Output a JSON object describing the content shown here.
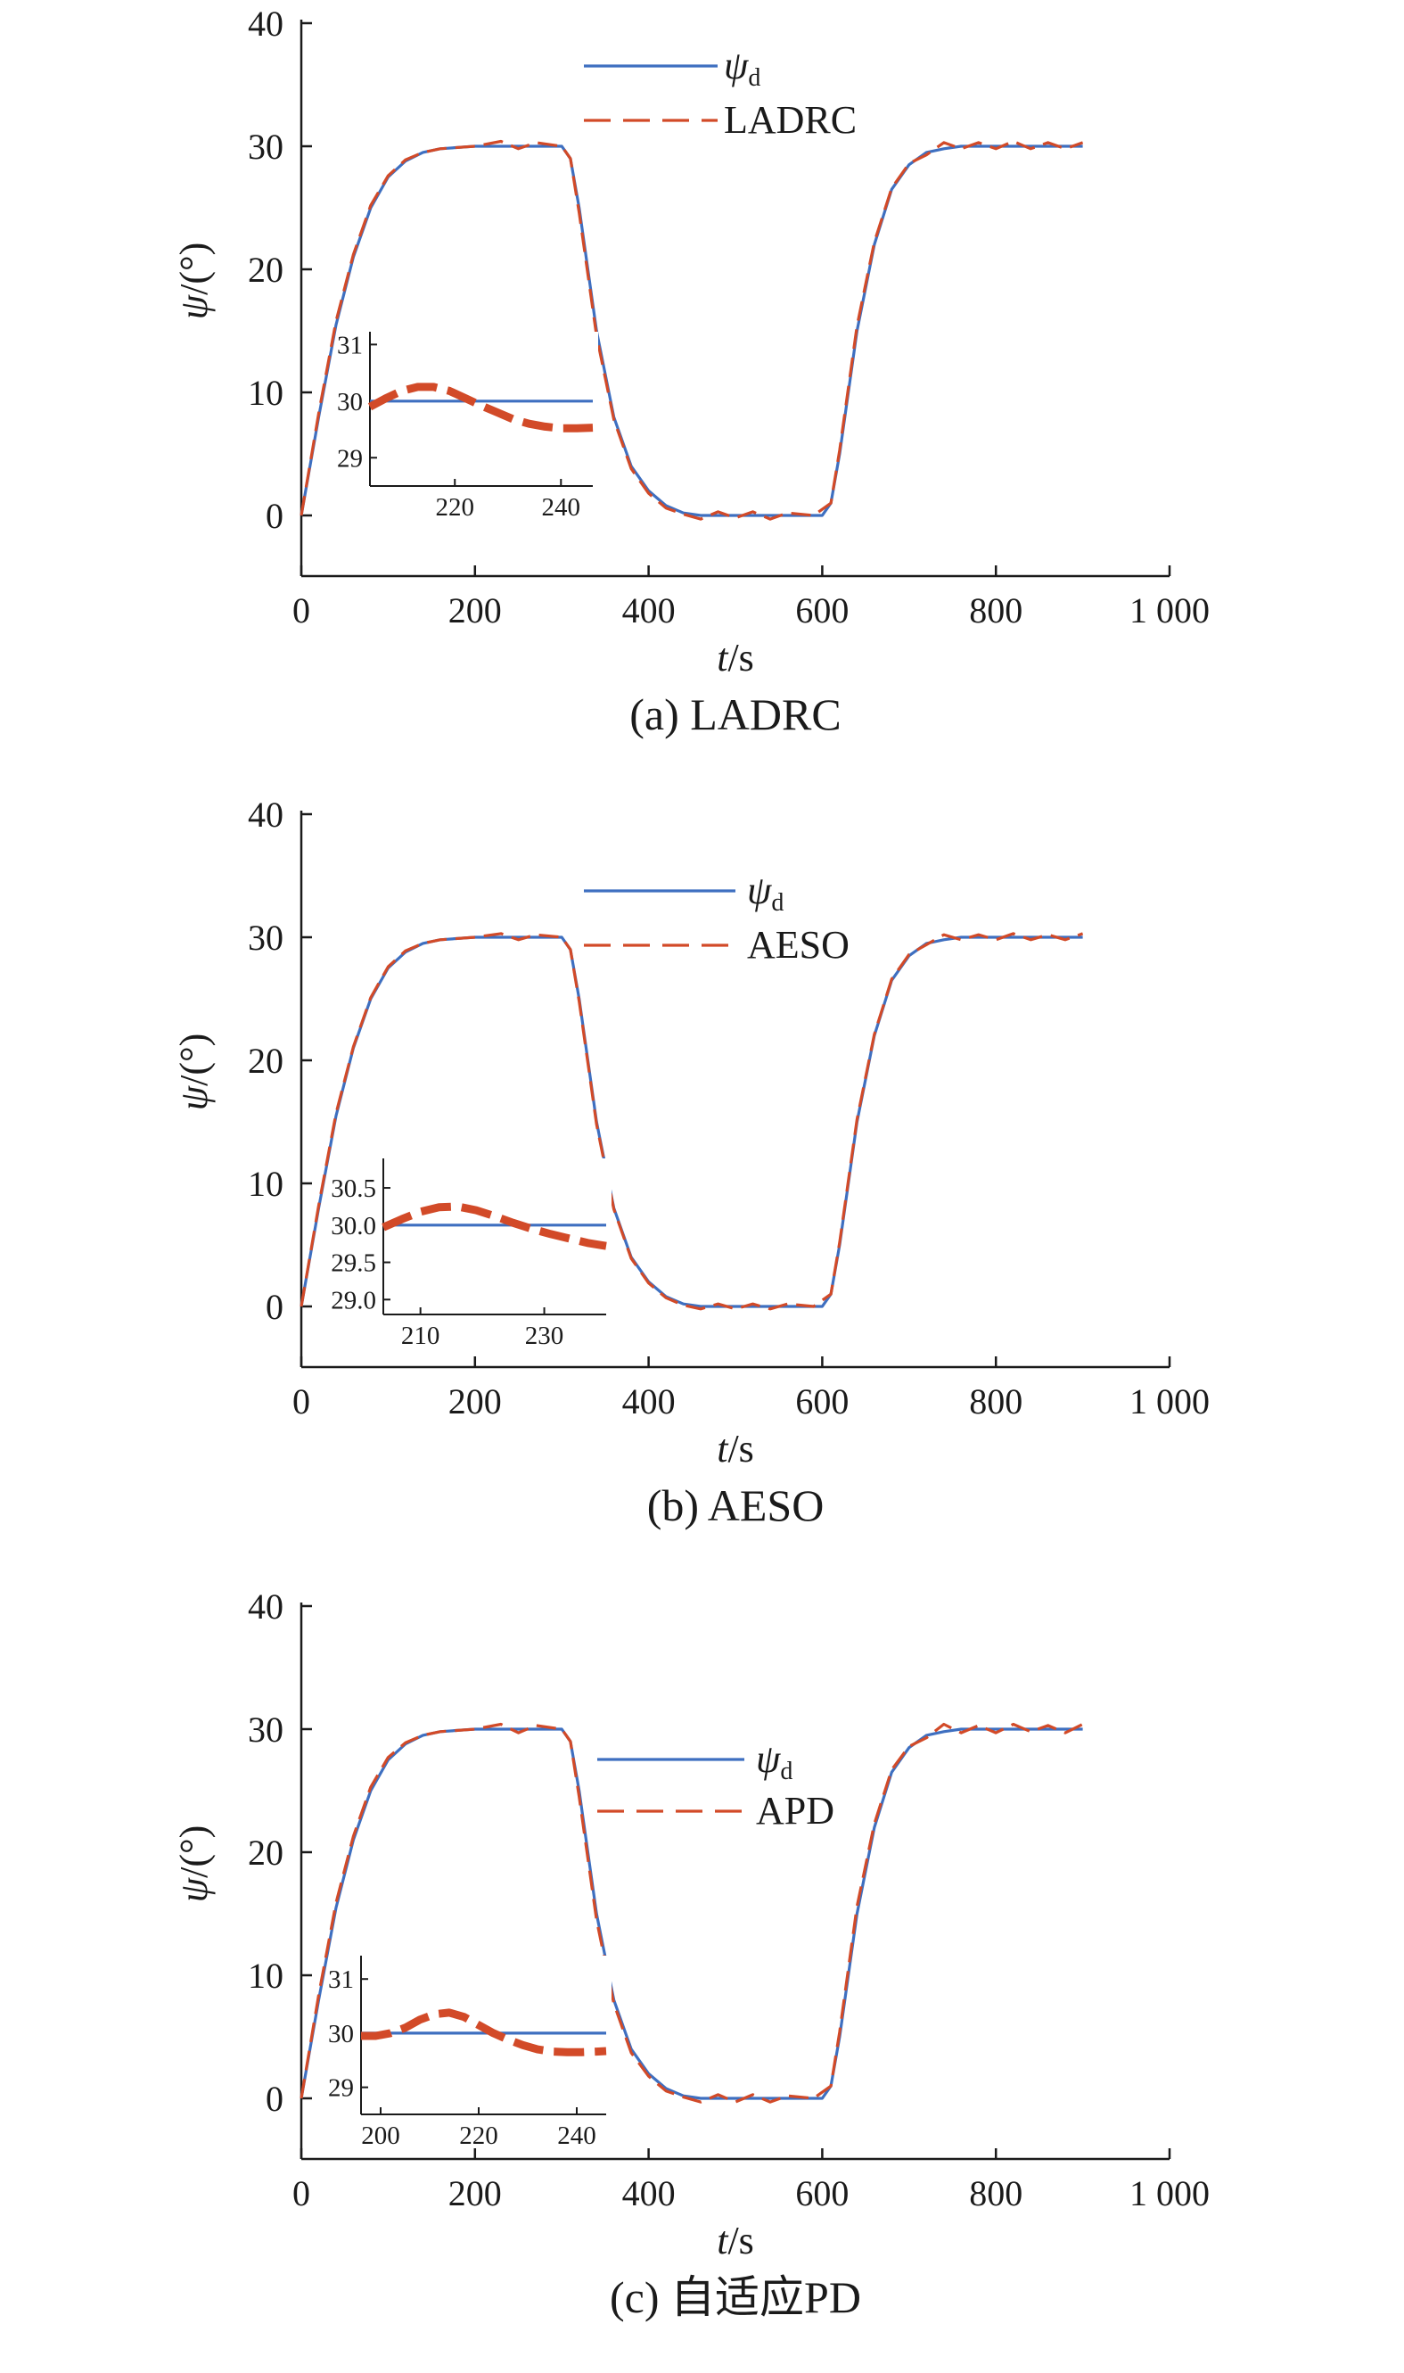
{
  "colors": {
    "desired": "#3e6fc0",
    "controller": "#d24a28",
    "axis": "#1a1a1a"
  },
  "chart_data": [
    {
      "type": "line",
      "caption": "(a) LADRC",
      "xlabel": {
        "var": "t",
        "unit": "/s"
      },
      "ylabel": {
        "var": "ψ",
        "unit": "/(°)"
      },
      "xlim": [
        0,
        1000
      ],
      "ylim": [
        -5,
        40
      ],
      "xticks": [
        0,
        200,
        400,
        600,
        800,
        1000
      ],
      "xtick_labels": [
        "0",
        "200",
        "400",
        "600",
        "800",
        "1 000"
      ],
      "yticks": [
        0,
        10,
        20,
        30,
        40
      ],
      "ytick_labels": [
        "0",
        "10",
        "20",
        "30",
        "40"
      ],
      "legend_position": "top-center",
      "series": [
        {
          "name": "ψd",
          "label_main": "ψ",
          "label_sub": "d",
          "style": "solid",
          "x": [
            0,
            20,
            40,
            60,
            80,
            100,
            120,
            140,
            160,
            200,
            250,
            300,
            310,
            320,
            340,
            360,
            380,
            400,
            420,
            440,
            460,
            500,
            550,
            600,
            610,
            620,
            640,
            660,
            680,
            700,
            720,
            740,
            760,
            800,
            850,
            900
          ],
          "y": [
            0,
            8,
            15.5,
            21,
            25,
            27.5,
            28.8,
            29.5,
            29.8,
            30,
            30,
            30,
            29,
            25,
            15,
            8,
            4,
            2,
            0.8,
            0.2,
            0,
            0,
            0,
            0,
            1,
            5,
            15,
            22,
            26.5,
            28.5,
            29.5,
            29.8,
            30,
            30,
            30,
            30
          ]
        },
        {
          "name": "LADRC",
          "style": "dashed",
          "x": [
            0,
            20,
            40,
            60,
            80,
            100,
            120,
            140,
            160,
            200,
            230,
            250,
            270,
            300,
            310,
            320,
            340,
            360,
            380,
            400,
            420,
            440,
            460,
            480,
            500,
            520,
            540,
            560,
            590,
            610,
            620,
            640,
            660,
            680,
            700,
            720,
            740,
            760,
            780,
            800,
            820,
            840,
            860,
            880,
            900
          ],
          "y": [
            0,
            8.3,
            15.8,
            21.2,
            25.2,
            27.6,
            28.9,
            29.5,
            29.8,
            30,
            30.4,
            29.8,
            30.3,
            30,
            29,
            24.6,
            14.6,
            7.8,
            3.8,
            1.8,
            0.6,
            0.1,
            -0.3,
            0.3,
            -0.2,
            0.3,
            -0.3,
            0.2,
            0,
            1,
            5.3,
            15.4,
            22.2,
            26.6,
            28.6,
            29.3,
            30.3,
            29.8,
            30.3,
            29.8,
            30.4,
            29.8,
            30.3,
            29.8,
            30.3
          ]
        }
      ],
      "inset": {
        "xlim": [
          204,
          246
        ],
        "ylim": [
          28.5,
          31.1
        ],
        "xticks": [
          220,
          240
        ],
        "xtick_labels": [
          "220",
          "240"
        ],
        "yticks": [
          29,
          30,
          31
        ],
        "ytick_labels": [
          "29",
          "30",
          "31"
        ],
        "series": [
          {
            "name": "ψd",
            "x": [
              204,
              246
            ],
            "y": [
              30,
              30
            ]
          },
          {
            "name": "LADRC",
            "x": [
              204,
              207,
              210,
              213,
              216,
              219,
              222,
              225,
              228,
              231,
              234,
              237,
              240,
              243,
              246
            ],
            "y": [
              29.9,
              30.05,
              30.18,
              30.25,
              30.25,
              30.18,
              30.05,
              29.92,
              29.8,
              29.68,
              29.6,
              29.55,
              29.52,
              29.52,
              29.53
            ]
          }
        ]
      }
    },
    {
      "type": "line",
      "caption": "(b) AESO",
      "xlabel": {
        "var": "t",
        "unit": "/s"
      },
      "ylabel": {
        "var": "ψ",
        "unit": "/(°)"
      },
      "xlim": [
        0,
        1000
      ],
      "ylim": [
        -5,
        40
      ],
      "xticks": [
        0,
        200,
        400,
        600,
        800,
        1000
      ],
      "xtick_labels": [
        "0",
        "200",
        "400",
        "600",
        "800",
        "1 000"
      ],
      "yticks": [
        0,
        10,
        20,
        30,
        40
      ],
      "ytick_labels": [
        "0",
        "10",
        "20",
        "30",
        "40"
      ],
      "legend_position": "top-center",
      "series": [
        {
          "name": "ψd",
          "label_main": "ψ",
          "label_sub": "d",
          "style": "solid",
          "x": [
            0,
            20,
            40,
            60,
            80,
            100,
            120,
            140,
            160,
            200,
            250,
            300,
            310,
            320,
            340,
            360,
            380,
            400,
            420,
            440,
            460,
            500,
            550,
            600,
            610,
            620,
            640,
            660,
            680,
            700,
            720,
            740,
            760,
            800,
            850,
            900
          ],
          "y": [
            0,
            8,
            15.5,
            21,
            25,
            27.5,
            28.8,
            29.5,
            29.8,
            30,
            30,
            30,
            29,
            25,
            15,
            8,
            4,
            2,
            0.8,
            0.2,
            0,
            0,
            0,
            0,
            1,
            5,
            15,
            22,
            26.5,
            28.5,
            29.5,
            29.8,
            30,
            30,
            30,
            30
          ]
        },
        {
          "name": "AESO",
          "style": "dashed",
          "x": [
            0,
            20,
            40,
            60,
            80,
            100,
            120,
            140,
            160,
            200,
            230,
            250,
            270,
            300,
            310,
            320,
            340,
            360,
            380,
            400,
            420,
            440,
            460,
            480,
            500,
            520,
            540,
            560,
            590,
            610,
            620,
            640,
            660,
            680,
            700,
            720,
            740,
            760,
            780,
            800,
            820,
            840,
            860,
            880,
            900
          ],
          "y": [
            0,
            8.2,
            15.7,
            21.1,
            25.1,
            27.6,
            28.9,
            29.5,
            29.8,
            30,
            30.3,
            29.8,
            30.2,
            30,
            29,
            24.8,
            14.8,
            7.9,
            3.9,
            1.9,
            0.7,
            0.1,
            -0.2,
            0.2,
            -0.2,
            0.2,
            -0.2,
            0.2,
            0,
            1,
            5.2,
            15.2,
            22.1,
            26.6,
            28.6,
            29.4,
            30.2,
            29.8,
            30.2,
            29.8,
            30.3,
            29.8,
            30.2,
            29.8,
            30.3
          ]
        }
      ],
      "inset": {
        "xlim": [
          204,
          240
        ],
        "ylim": [
          28.8,
          30.8
        ],
        "xticks": [
          210,
          230
        ],
        "xtick_labels": [
          "210",
          "230"
        ],
        "yticks": [
          29.0,
          29.5,
          30.0,
          30.5
        ],
        "ytick_labels": [
          "29.0",
          "29.5",
          "30.0",
          "30.5"
        ],
        "series": [
          {
            "name": "ψd",
            "x": [
              204,
              240
            ],
            "y": [
              30,
              30
            ]
          },
          {
            "name": "AESO",
            "x": [
              204,
              207,
              210,
              213,
              216,
              219,
              222,
              225,
              228,
              231,
              234,
              237,
              240
            ],
            "y": [
              29.97,
              30.08,
              30.18,
              30.24,
              30.25,
              30.2,
              30.12,
              30.03,
              29.95,
              29.88,
              29.82,
              29.76,
              29.72
            ]
          }
        ]
      }
    },
    {
      "type": "line",
      "caption": "(c) 自适应PD",
      "xlabel": {
        "var": "t",
        "unit": "/s"
      },
      "ylabel": {
        "var": "ψ",
        "unit": "/(°)"
      },
      "xlim": [
        0,
        1000
      ],
      "ylim": [
        -5,
        40
      ],
      "xticks": [
        0,
        200,
        400,
        600,
        800,
        1000
      ],
      "xtick_labels": [
        "0",
        "200",
        "400",
        "600",
        "800",
        "1 000"
      ],
      "yticks": [
        0,
        10,
        20,
        30,
        40
      ],
      "ytick_labels": [
        "0",
        "10",
        "20",
        "30",
        "40"
      ],
      "legend_position": "top-center",
      "series": [
        {
          "name": "ψd",
          "label_main": "ψ",
          "label_sub": "d",
          "style": "solid",
          "x": [
            0,
            20,
            40,
            60,
            80,
            100,
            120,
            140,
            160,
            200,
            250,
            300,
            310,
            320,
            340,
            360,
            380,
            400,
            420,
            440,
            460,
            500,
            550,
            600,
            610,
            620,
            640,
            660,
            680,
            700,
            720,
            740,
            760,
            800,
            850,
            900
          ],
          "y": [
            0,
            8,
            15.5,
            21,
            25,
            27.5,
            28.8,
            29.5,
            29.8,
            30,
            30,
            30,
            29,
            25,
            15,
            8,
            4,
            2,
            0.8,
            0.2,
            0,
            0,
            0,
            0,
            1,
            5,
            15,
            22,
            26.5,
            28.5,
            29.5,
            29.8,
            30,
            30,
            30,
            30
          ]
        },
        {
          "name": "APD",
          "style": "dashed",
          "x": [
            0,
            20,
            40,
            60,
            80,
            100,
            120,
            140,
            160,
            200,
            230,
            250,
            270,
            300,
            310,
            320,
            340,
            360,
            380,
            400,
            420,
            440,
            460,
            480,
            500,
            520,
            540,
            560,
            590,
            610,
            620,
            640,
            660,
            680,
            700,
            720,
            740,
            760,
            780,
            800,
            820,
            840,
            860,
            880,
            900
          ],
          "y": [
            0,
            8.4,
            15.9,
            21.3,
            25.3,
            27.7,
            28.9,
            29.5,
            29.8,
            30,
            30.4,
            29.7,
            30.3,
            30,
            29,
            24.5,
            14.5,
            7.7,
            3.7,
            1.8,
            0.6,
            0.1,
            -0.3,
            0.3,
            -0.3,
            0.3,
            -0.3,
            0.2,
            0,
            1,
            5.4,
            15.6,
            22.3,
            26.7,
            28.6,
            29.3,
            30.4,
            29.7,
            30.3,
            29.7,
            30.4,
            29.8,
            30.3,
            29.7,
            30.4
          ]
        }
      ],
      "inset": {
        "xlim": [
          196,
          246
        ],
        "ylim": [
          28.5,
          31.3
        ],
        "xticks": [
          200,
          220,
          240
        ],
        "xtick_labels": [
          "200",
          "220",
          "240"
        ],
        "yticks": [
          29,
          30,
          31
        ],
        "ytick_labels": [
          "29",
          "30",
          "31"
        ],
        "series": [
          {
            "name": "ψd",
            "x": [
              196,
              246
            ],
            "y": [
              30,
              30
            ]
          },
          {
            "name": "APD",
            "x": [
              196,
              199,
              202,
              205,
              208,
              211,
              214,
              217,
              220,
              223,
              226,
              229,
              232,
              235,
              238,
              241,
              244,
              246
            ],
            "y": [
              29.95,
              29.95,
              30.0,
              30.1,
              30.25,
              30.35,
              30.38,
              30.3,
              30.15,
              30.0,
              29.88,
              29.78,
              29.7,
              29.66,
              29.65,
              29.65,
              29.66,
              29.67
            ]
          }
        ]
      }
    }
  ]
}
